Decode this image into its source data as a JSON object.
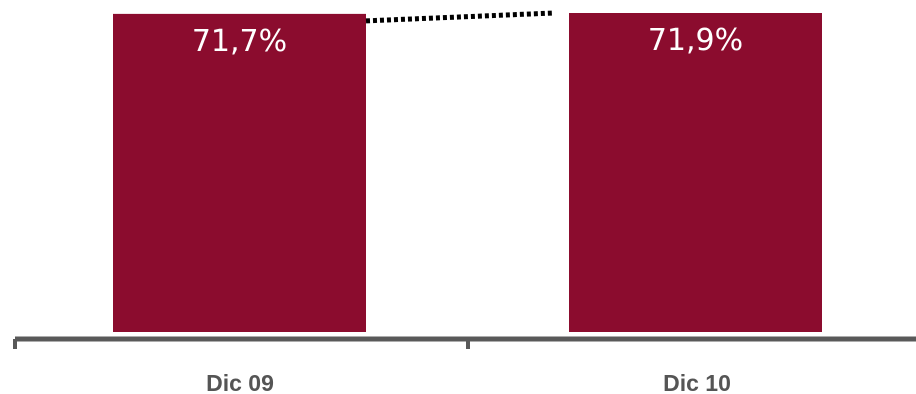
{
  "chart_data": {
    "type": "bar",
    "title": "",
    "xlabel": "",
    "ylabel": "",
    "categories": [
      "Dic 09",
      "Dic 10"
    ],
    "values": [
      71.7,
      71.9
    ],
    "value_labels": [
      "71,7%",
      "71,9%"
    ],
    "ylim": [
      0,
      71.9
    ],
    "grid": false,
    "connector": "dotted",
    "colors": {
      "bar": "#8b0c2e",
      "axis": "#595959",
      "connector": "#000000"
    }
  }
}
